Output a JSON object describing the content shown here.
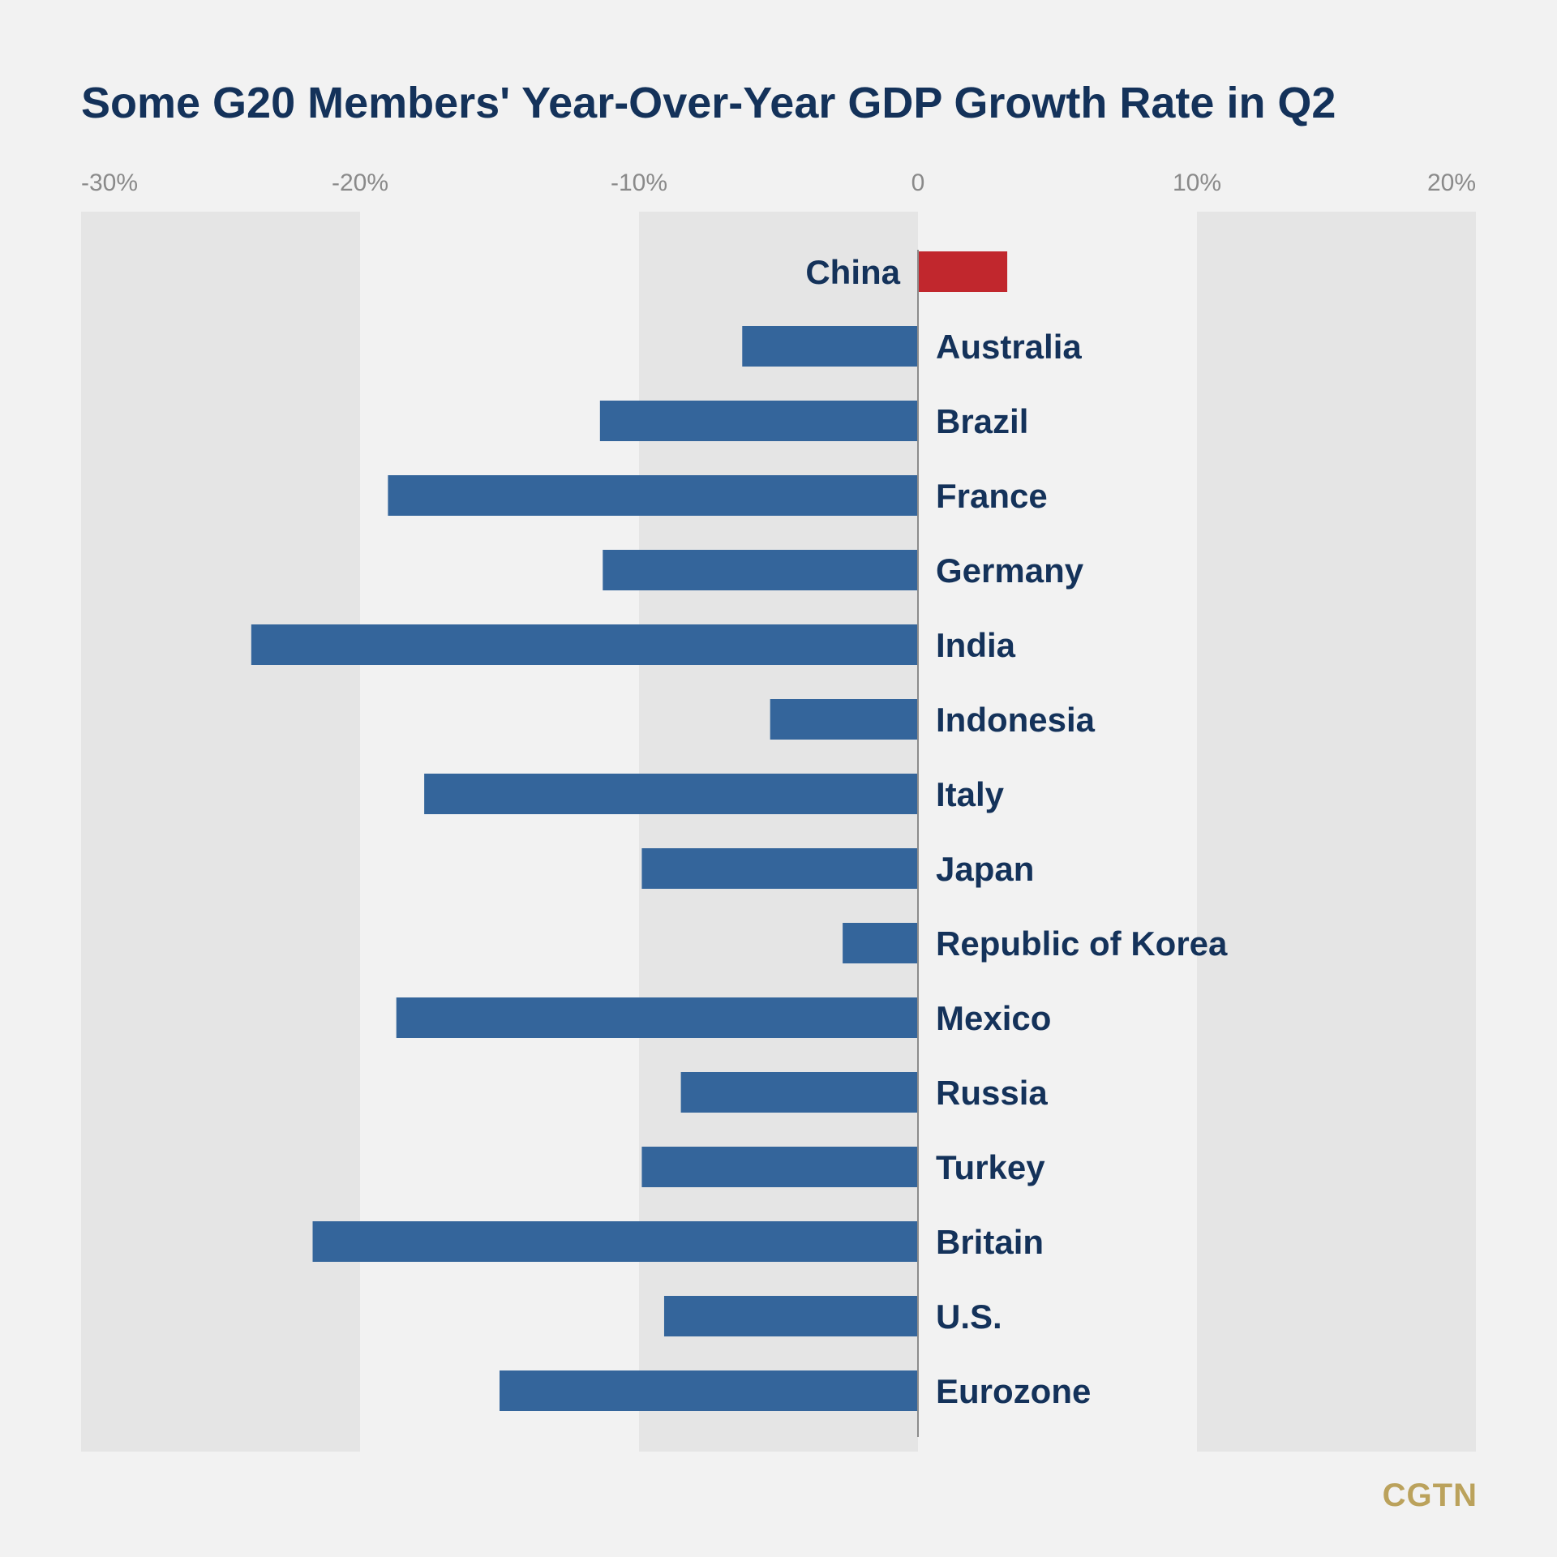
{
  "chart_data": {
    "type": "bar",
    "orientation": "horizontal",
    "title": "Some G20 Members' Year-Over-Year GDP Growth Rate in Q2",
    "xlim": [
      -30,
      20
    ],
    "ticks": [
      {
        "value": -30,
        "label": "-30%"
      },
      {
        "value": -20,
        "label": "-20%"
      },
      {
        "value": -10,
        "label": "-10%"
      },
      {
        "value": 0,
        "label": "0"
      },
      {
        "value": 10,
        "label": "10%"
      },
      {
        "value": 20,
        "label": "20%"
      }
    ],
    "grid": "alternating vertical bands",
    "categories": [
      "China",
      "Australia",
      "Brazil",
      "France",
      "Germany",
      "India",
      "Indonesia",
      "Italy",
      "Japan",
      "Republic of Korea",
      "Mexico",
      "Russia",
      "Turkey",
      "Britain",
      "U.S.",
      "Eurozone"
    ],
    "values": [
      3.2,
      -6.3,
      -11.4,
      -19.0,
      -11.3,
      -23.9,
      -5.3,
      -17.7,
      -9.9,
      -2.7,
      -18.7,
      -8.5,
      -9.9,
      -21.7,
      -9.1,
      -15.0
    ],
    "colors": {
      "highlight": "#c1272d",
      "bar": "#34659b",
      "label": "#14325a",
      "tick": "#8a8a8a",
      "band": "#e5e5e5",
      "background": "#f2f2f2"
    }
  },
  "brand": "CGTN"
}
